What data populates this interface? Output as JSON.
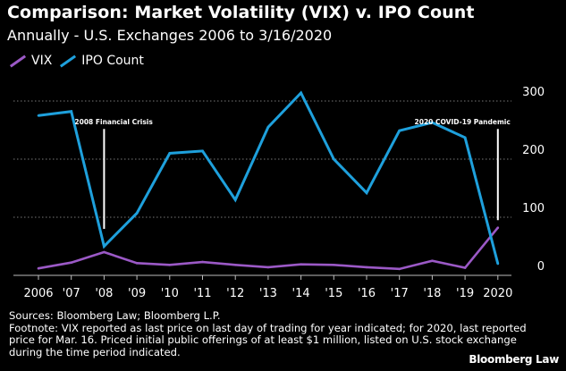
{
  "header": {
    "title": "Comparison: Market Volatility (VIX) v. IPO Count",
    "subtitle": "Annually - U.S. Exchanges 2006 to 3/16/2020"
  },
  "chart_data": {
    "type": "line",
    "categories": [
      "2006",
      "'07",
      "'08",
      "'09",
      "'10",
      "'11",
      "'12",
      "'13",
      "'14",
      "'15",
      "'16",
      "'17",
      "'18",
      "'19",
      "2020"
    ],
    "series": [
      {
        "name": "VIX",
        "color": "#9b59c6",
        "values": [
          12,
          22,
          40,
          21,
          18,
          23,
          18,
          14,
          19,
          18,
          14,
          11,
          25,
          13,
          82
        ]
      },
      {
        "name": "IPO Count",
        "color": "#1ea0dc",
        "values": [
          275,
          282,
          50,
          107,
          210,
          214,
          130,
          255,
          314,
          200,
          142,
          249,
          263,
          237,
          20
        ]
      }
    ],
    "y_ticks": [
      "0",
      "100",
      "200",
      "300"
    ],
    "ylim": [
      0,
      320
    ],
    "grid": true,
    "legend_position": "top-left",
    "annotations": [
      {
        "label": "2008 Financial Crisis",
        "category": "'08",
        "from_value": 252,
        "to_value": 80
      },
      {
        "label": "2020 COVID-19 Pandemic",
        "category": "2020",
        "from_value": 252,
        "to_value": 95
      }
    ]
  },
  "footer": {
    "sources": "Sources: Bloomberg Law; Bloomberg L.P.",
    "footnote": "Footnote: VIX reported as last price on last day of trading for year indicated; for 2020, last reported price for Mar. 16. Priced initial public offerings of at least $1 million, listed on U.S. stock exchange during the time period indicated.",
    "brand": "Bloomberg Law"
  }
}
